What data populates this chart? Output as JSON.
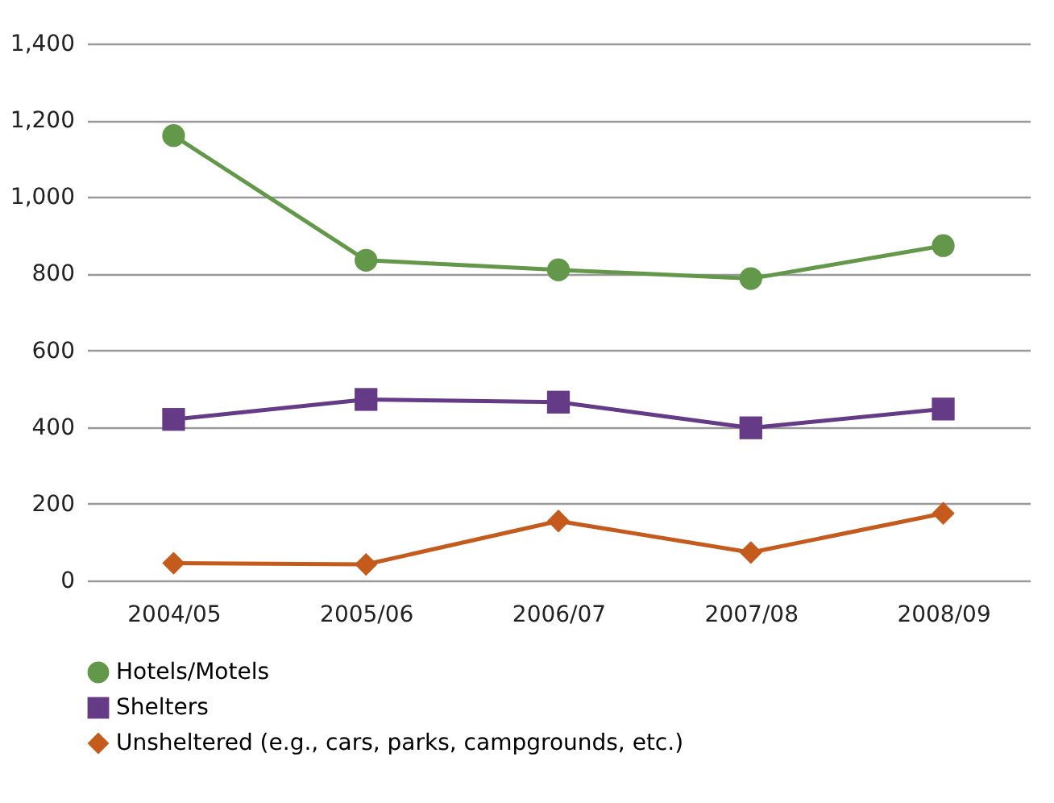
{
  "chart_data": {
    "type": "line",
    "categories": [
      "2004/05",
      "2005/06",
      "2006/07",
      "2007/08",
      "2008/09"
    ],
    "series": [
      {
        "name": "Hotels/Motels",
        "color": "#63974a",
        "marker": "circle",
        "values": [
          1160,
          835,
          810,
          787,
          873
        ]
      },
      {
        "name": "Shelters",
        "color": "#653a86",
        "marker": "square",
        "values": [
          420,
          472,
          465,
          398,
          447
        ]
      },
      {
        "name": "Unsheltered (e.g., cars, parks, campgrounds, etc.)",
        "color": "#c55a1d",
        "marker": "diamond",
        "values": [
          45,
          42,
          155,
          73,
          175
        ]
      }
    ],
    "ylim": [
      0,
      1400
    ],
    "yticks": [
      0,
      200,
      400,
      600,
      800,
      {
        "value": 1000,
        "label": "1,000"
      },
      {
        "value": 1200,
        "label": "1,200"
      },
      {
        "value": 1400,
        "label": "1,400"
      }
    ],
    "grid": "y",
    "legend": "bottom",
    "line_style": "solid"
  }
}
